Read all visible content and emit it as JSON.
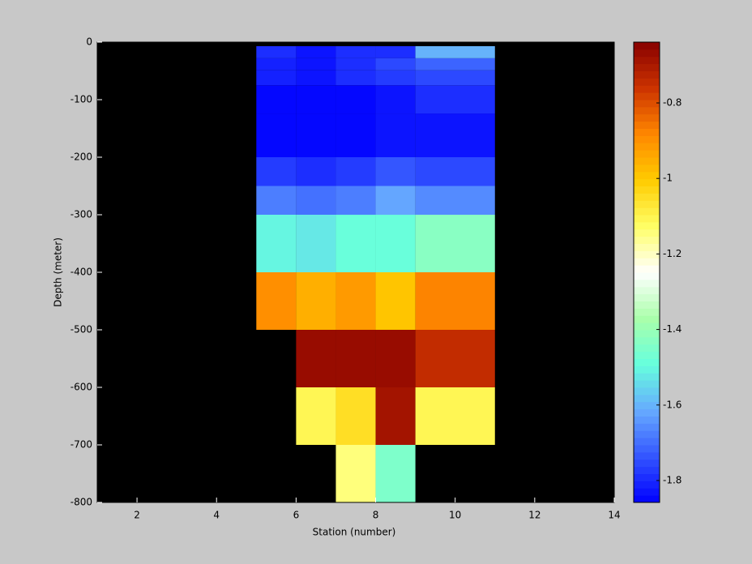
{
  "chart_data": {
    "type": "heatmap",
    "x_label": "Station (number)",
    "y_label": "Depth (meter)",
    "x_edges": [
      5,
      6,
      7,
      8,
      9,
      11
    ],
    "y_edges": [
      -7,
      -28,
      -49,
      -75,
      -124,
      -200,
      -250,
      -300,
      -400,
      -500,
      -600,
      -700,
      -800
    ],
    "z": [
      [
        -1.8,
        -1.83,
        -1.8,
        -1.79,
        -1.6
      ],
      [
        -1.81,
        -1.82,
        -1.8,
        -1.76,
        -1.72
      ],
      [
        -1.81,
        -1.82,
        -1.8,
        -1.78,
        -1.75
      ],
      [
        -1.85,
        -1.85,
        -1.84,
        -1.82,
        -1.79
      ],
      [
        -1.85,
        -1.85,
        -1.84,
        -1.83,
        -1.82
      ],
      [
        -1.77,
        -1.8,
        -1.78,
        -1.74,
        -1.76
      ],
      [
        -1.67,
        -1.7,
        -1.67,
        -1.62,
        -1.65
      ],
      [
        -1.5,
        -1.52,
        -1.48,
        -1.48,
        -1.43
      ],
      [
        -0.9,
        -0.95,
        -0.92,
        -1.0,
        -0.88
      ],
      [
        null,
        -0.66,
        -0.66,
        -0.66,
        -0.74
      ],
      [
        null,
        -1.1,
        -1.04,
        -0.68,
        -1.1
      ],
      [
        null,
        null,
        -1.15,
        -1.45,
        null
      ]
    ],
    "xlim": [
      1,
      14
    ],
    "xticks": [
      2,
      4,
      6,
      8,
      10,
      12,
      14
    ],
    "ylim": [
      -800,
      0
    ],
    "yticks": [
      0,
      -100,
      -200,
      -300,
      -400,
      -500,
      -600,
      -700,
      -800
    ],
    "clim": [
      -1.858,
      -0.639
    ],
    "cticks": [
      -1.8,
      -1.6,
      -1.4,
      -1.2,
      -1,
      -0.8
    ],
    "colormap": [
      "#0000ff",
      "#3355ff",
      "#66aaff",
      "#66ffdd",
      "#aaffaa",
      "#ffffff",
      "#ffff66",
      "#ffcc00",
      "#ff8800",
      "#cc3300",
      "#880000"
    ],
    "colormap_levels": 64,
    "background_color": "#000000"
  }
}
